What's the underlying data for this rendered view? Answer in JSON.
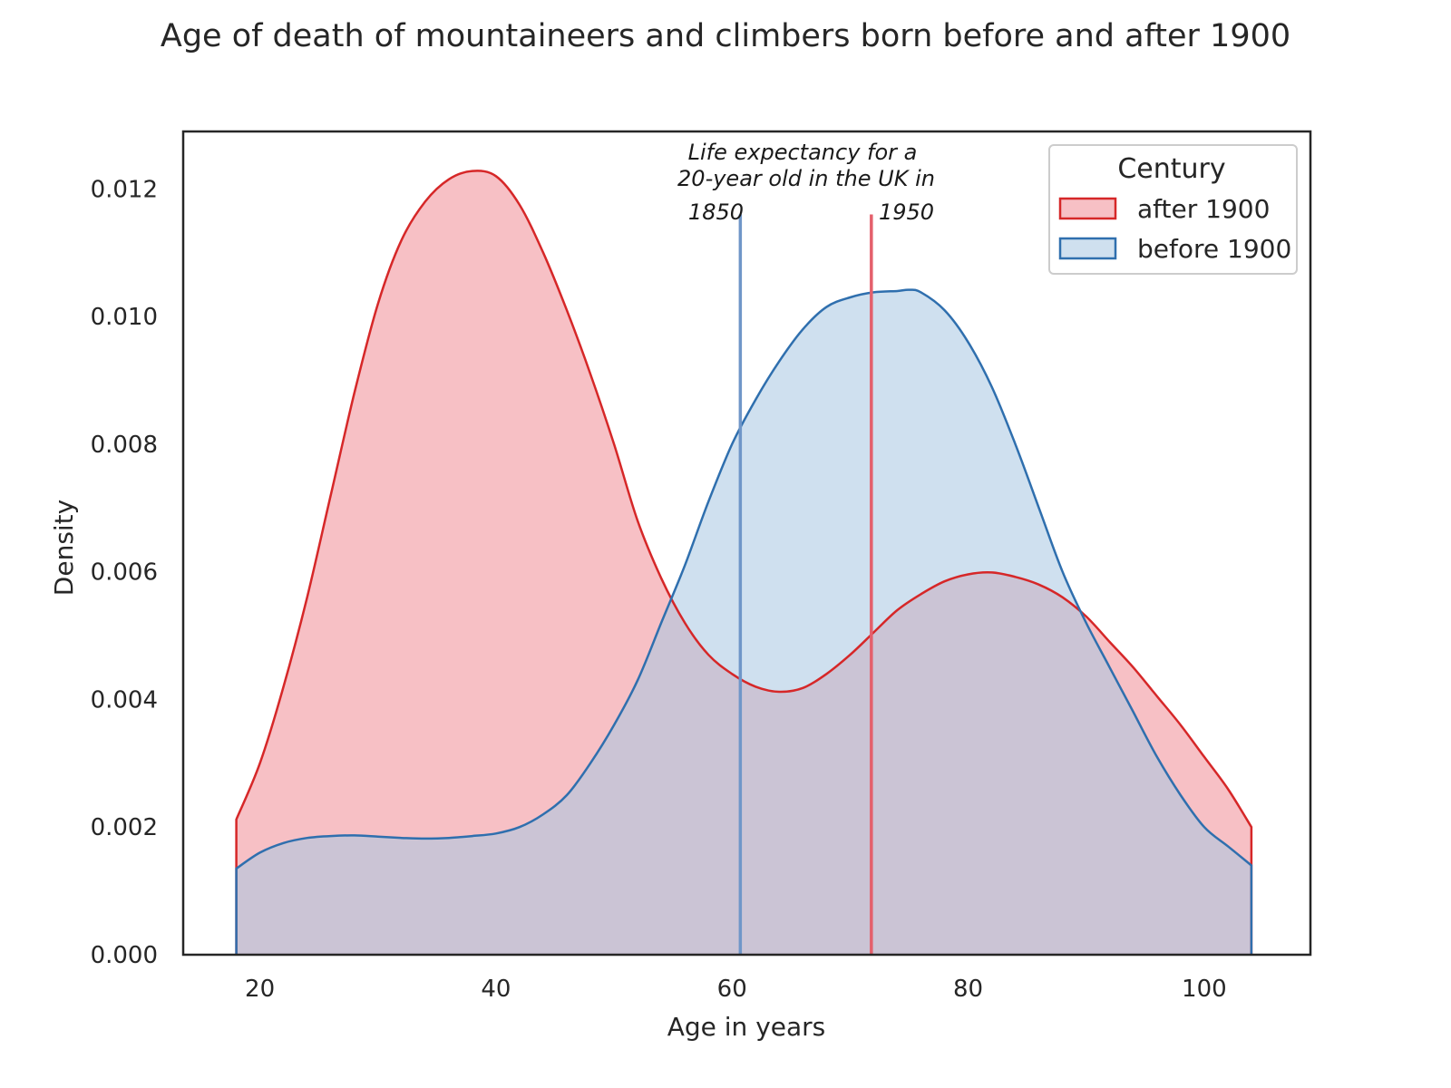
{
  "chart_data": {
    "type": "area",
    "title": "Age of death of mountaineers and climbers born before and after 1900",
    "xlabel": "Age in years",
    "ylabel": "Density",
    "xlim": [
      13.5,
      109
    ],
    "ylim": [
      0,
      0.0129
    ],
    "x_ticks": [
      20,
      40,
      60,
      80,
      100
    ],
    "x_tick_labels": [
      "20",
      "40",
      "60",
      "80",
      "100"
    ],
    "y_ticks": [
      0,
      0.002,
      0.004,
      0.006,
      0.008,
      0.01,
      0.012
    ],
    "y_tick_labels": [
      "0.000",
      "0.002",
      "0.004",
      "0.006",
      "0.008",
      "0.010",
      "0.012"
    ],
    "grid": false,
    "legend": {
      "title": "Century",
      "position": "top-right",
      "entries": [
        "after 1900",
        "before 1900"
      ]
    },
    "series": [
      {
        "name": "after 1900",
        "stroke": "#d62728",
        "fill": "#f08c95",
        "points": [
          [
            18,
            0.00212
          ],
          [
            20,
            0.003
          ],
          [
            22,
            0.0042
          ],
          [
            24,
            0.0056
          ],
          [
            26,
            0.0072
          ],
          [
            28,
            0.0088
          ],
          [
            30,
            0.0102
          ],
          [
            32,
            0.0112
          ],
          [
            34,
            0.0118
          ],
          [
            36,
            0.01215
          ],
          [
            38,
            0.01228
          ],
          [
            40,
            0.0122
          ],
          [
            42,
            0.01175
          ],
          [
            44,
            0.011
          ],
          [
            46,
            0.0101
          ],
          [
            48,
            0.0091
          ],
          [
            50,
            0.008
          ],
          [
            52,
            0.0068
          ],
          [
            54,
            0.0059
          ],
          [
            56,
            0.0052
          ],
          [
            58,
            0.0047
          ],
          [
            60,
            0.0044
          ],
          [
            62,
            0.0042
          ],
          [
            64,
            0.00412
          ],
          [
            66,
            0.00418
          ],
          [
            68,
            0.0044
          ],
          [
            70,
            0.0047
          ],
          [
            72,
            0.00505
          ],
          [
            74,
            0.0054
          ],
          [
            76,
            0.00565
          ],
          [
            78,
            0.00585
          ],
          [
            80,
            0.00596
          ],
          [
            82,
            0.00599
          ],
          [
            84,
            0.00592
          ],
          [
            86,
            0.0058
          ],
          [
            88,
            0.0056
          ],
          [
            90,
            0.0053
          ],
          [
            92,
            0.0049
          ],
          [
            94,
            0.0045
          ],
          [
            96,
            0.00405
          ],
          [
            98,
            0.0036
          ],
          [
            100,
            0.0031
          ],
          [
            102,
            0.0026
          ],
          [
            104,
            0.002
          ]
        ]
      },
      {
        "name": "before 1900",
        "stroke": "#2f6fae",
        "fill": "#a8c6e2",
        "points": [
          [
            18,
            0.00135
          ],
          [
            20,
            0.0016
          ],
          [
            22,
            0.00175
          ],
          [
            24,
            0.00183
          ],
          [
            26,
            0.00186
          ],
          [
            28,
            0.00187
          ],
          [
            30,
            0.00185
          ],
          [
            32,
            0.00183
          ],
          [
            34,
            0.00182
          ],
          [
            36,
            0.00183
          ],
          [
            38,
            0.00186
          ],
          [
            40,
            0.0019
          ],
          [
            42,
            0.002
          ],
          [
            44,
            0.0022
          ],
          [
            46,
            0.0025
          ],
          [
            48,
            0.003
          ],
          [
            50,
            0.0036
          ],
          [
            52,
            0.0043
          ],
          [
            54,
            0.0052
          ],
          [
            56,
            0.0061
          ],
          [
            58,
            0.0071
          ],
          [
            60,
            0.008
          ],
          [
            62,
            0.0087
          ],
          [
            64,
            0.0093
          ],
          [
            66,
            0.0098
          ],
          [
            68,
            0.01015
          ],
          [
            70,
            0.0103
          ],
          [
            72,
            0.01038
          ],
          [
            74,
            0.0104
          ],
          [
            75,
            0.01042
          ],
          [
            76,
            0.01038
          ],
          [
            78,
            0.0101
          ],
          [
            80,
            0.0096
          ],
          [
            82,
            0.0089
          ],
          [
            84,
            0.008
          ],
          [
            86,
            0.007
          ],
          [
            88,
            0.006
          ],
          [
            90,
            0.0052
          ],
          [
            92,
            0.0045
          ],
          [
            94,
            0.0038
          ],
          [
            96,
            0.0031
          ],
          [
            98,
            0.0025
          ],
          [
            100,
            0.002
          ],
          [
            102,
            0.0017
          ],
          [
            104,
            0.0014
          ]
        ]
      }
    ],
    "reference_lines": [
      {
        "x": 60.7,
        "label": "1850",
        "color": "#6f96c8",
        "top": 0.0116
      },
      {
        "x": 71.8,
        "label": "1950",
        "color": "#e4606c",
        "top": 0.0116
      }
    ],
    "annotation": [
      "Life expectancy for a",
      "20-year old in the UK in"
    ]
  }
}
